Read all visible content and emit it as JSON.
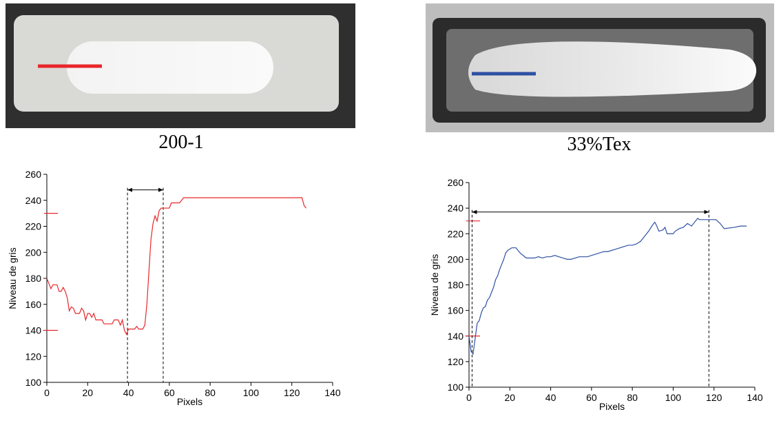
{
  "chart_data": [
    {
      "type": "line",
      "title": "200-1",
      "x_label": "Pixels",
      "y_label": "Niveau de gris",
      "color": "#e8262a",
      "x": [
        0,
        1,
        2,
        3,
        5,
        6,
        7,
        8,
        9,
        10,
        11,
        12,
        13,
        14,
        16,
        17,
        18,
        19,
        20,
        21,
        22,
        23,
        24,
        27,
        28,
        32,
        33,
        35,
        36,
        37,
        38,
        39,
        40,
        43,
        44,
        45,
        47,
        48,
        49,
        50,
        51,
        52,
        53,
        54,
        55,
        56,
        60,
        61,
        65,
        66,
        67,
        125,
        126,
        127
      ],
      "values": [
        180,
        176,
        172,
        175,
        175,
        170,
        170,
        173,
        170,
        165,
        155,
        158,
        157,
        153,
        153,
        157,
        155,
        148,
        153,
        153,
        150,
        153,
        148,
        148,
        145,
        145,
        148,
        148,
        144,
        148,
        140,
        137,
        141,
        141,
        143,
        141,
        141,
        144,
        160,
        185,
        210,
        222,
        228,
        224,
        232,
        234,
        234,
        238,
        238,
        240,
        242,
        242,
        236,
        234
      ],
      "xlim": [
        0,
        140
      ],
      "ylim": [
        100,
        260
      ],
      "xticks": [
        0,
        20,
        40,
        60,
        80,
        100,
        120,
        140
      ],
      "yticks": [
        100,
        120,
        140,
        160,
        180,
        200,
        220,
        240,
        260
      ],
      "reference_lines": [
        230,
        140
      ],
      "reference_color": "#e8262a",
      "vlines": [
        39.5,
        57
      ],
      "arrow": {
        "from": 39.5,
        "to": 57,
        "y": 248
      }
    },
    {
      "type": "line",
      "title": "33%Tex",
      "x_label": "Pixels",
      "y_label": "Niveau de gris",
      "color": "#2e4fa3",
      "x": [
        0,
        1,
        2,
        3,
        4,
        5,
        6,
        7,
        8,
        9,
        10,
        11,
        12,
        13,
        14,
        15,
        16,
        17,
        18,
        19,
        20,
        21,
        23,
        25,
        28,
        32,
        34,
        36,
        38,
        40,
        42,
        44,
        46,
        48,
        50,
        52,
        54,
        56,
        58,
        60,
        62,
        64,
        66,
        68,
        70,
        72,
        74,
        76,
        78,
        80,
        82,
        84,
        86,
        88,
        90,
        91,
        92,
        93,
        95,
        96,
        97,
        100,
        101,
        103,
        105,
        107,
        109,
        111,
        112,
        113,
        121,
        123,
        125,
        130,
        133,
        136
      ],
      "values": [
        140,
        128,
        126,
        138,
        150,
        152,
        158,
        162,
        163,
        168,
        170,
        174,
        178,
        184,
        187,
        192,
        196,
        200,
        205,
        207,
        208,
        209,
        209,
        205,
        201,
        201,
        202,
        201,
        202,
        202,
        203,
        202,
        201,
        200,
        200,
        201,
        202,
        202,
        202,
        203,
        204,
        205,
        206,
        206,
        207,
        208,
        209,
        210,
        211,
        211,
        212,
        214,
        218,
        222,
        227,
        229,
        226,
        222,
        223,
        225,
        220,
        220,
        222,
        224,
        225,
        228,
        226,
        230,
        232,
        231,
        231,
        228,
        224,
        225,
        226,
        226
      ],
      "xlim": [
        0,
        140
      ],
      "ylim": [
        100,
        260
      ],
      "xticks": [
        0,
        20,
        40,
        60,
        80,
        100,
        120,
        140
      ],
      "yticks": [
        100,
        120,
        140,
        160,
        180,
        200,
        220,
        240,
        260
      ],
      "reference_lines": [
        230,
        140
      ],
      "reference_color": "#e8262a",
      "vlines": [
        1.5,
        117.5
      ],
      "arrow": {
        "from": 1.5,
        "to": 117.5,
        "y": 237
      }
    }
  ]
}
